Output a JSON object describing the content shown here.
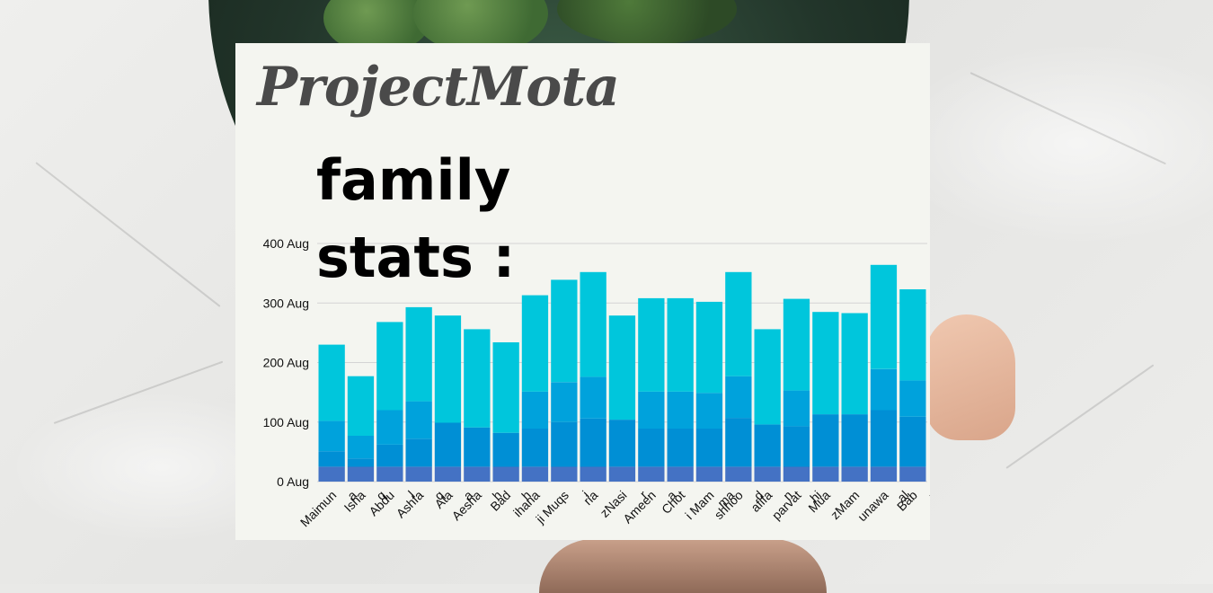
{
  "brand": "ProjectMota",
  "headline": {
    "line1": "family",
    "line2": "stats :"
  },
  "colors": {
    "card_bg": "#f4f5f0",
    "gridline": "#d4d4d4",
    "series": [
      "#4472c4",
      "#008fd5",
      "#00a2dc",
      "#00c6dc"
    ]
  },
  "chart_data": {
    "type": "bar",
    "stacked": true,
    "categories": [
      "Maimuna",
      "Ishaq",
      "Abdul",
      "Ashfaq",
      "Ataa",
      "Aesha",
      "Badh",
      "ihana",
      "jiMuqsi",
      "ria",
      "zNasi",
      "Ameena",
      "Chot",
      "i Mam",
      "mashhood",
      "afifa",
      "parvathi",
      "Mua",
      "zMam",
      "unawa",
      "al Baby"
    ],
    "category_label_lines": [
      [
        "Maimun",
        "a"
      ],
      [
        "Isha",
        "q"
      ],
      [
        "Abdu",
        "l"
      ],
      [
        "Ashfa",
        "q"
      ],
      [
        "Ata",
        "a"
      ],
      [
        "Aesha",
        "h"
      ],
      [
        "Bad",
        "h"
      ],
      [
        "ihana"
      ],
      [
        "ji Muqs",
        "i"
      ],
      [
        "ria"
      ],
      [
        "zNasi",
        "r"
      ],
      [
        "Ameen",
        "a"
      ],
      [
        "Chot",
        ""
      ],
      [
        "i Mam",
        "ma"
      ],
      [
        "shhoo",
        "d"
      ],
      [
        "afifa",
        "n"
      ],
      [
        "parvat",
        "hi"
      ],
      [
        "Mua",
        ""
      ],
      [
        "zMam",
        ""
      ],
      [
        "unawa",
        "al"
      ],
      [
        "Bab",
        "y"
      ]
    ],
    "series": [
      {
        "values": [
          25,
          25,
          25,
          25,
          25,
          25,
          25,
          25,
          25,
          25,
          25,
          25,
          25,
          25,
          25,
          25,
          25,
          25,
          25,
          25,
          25
        ]
      },
      {
        "values": [
          26,
          14,
          37,
          47,
          74,
          66,
          57,
          64,
          75,
          81,
          79,
          64,
          64,
          64,
          82,
          71,
          68,
          88,
          88,
          95,
          84
        ]
      },
      {
        "values": [
          51,
          38,
          58,
          63,
          0,
          0,
          0,
          62,
          67,
          70,
          0,
          62,
          62,
          60,
          70,
          0,
          60,
          0,
          0,
          69,
          61
        ]
      },
      {
        "values": [
          128,
          100,
          148,
          158,
          180,
          165,
          152,
          162,
          172,
          176,
          175,
          157,
          157,
          153,
          175,
          160,
          154,
          172,
          170,
          175,
          153
        ]
      }
    ],
    "ylim": [
      0,
      400
    ],
    "yticks": [
      0,
      100,
      200,
      300,
      400
    ],
    "ytick_labels": [
      "0 Aug",
      "100 Aug",
      "200 Aug",
      "300 Aug",
      "400 Aug"
    ],
    "grid": true,
    "legend": "none"
  }
}
